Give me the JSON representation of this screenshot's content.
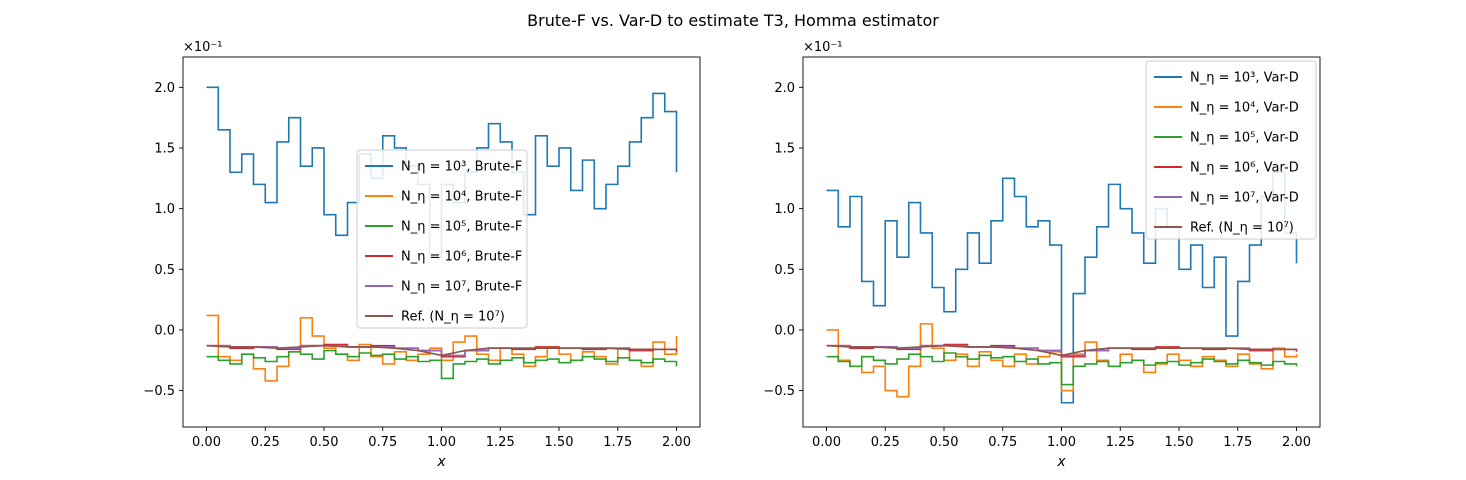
{
  "figure": {
    "title": "Brute-F vs. Var-D to estimate T3, Homma estimator"
  },
  "chart_data": [
    {
      "type": "line",
      "panel": "left",
      "xlabel": "x",
      "ylabel": "",
      "y_multiplier": "×10⁻¹",
      "xlim": [
        -0.1,
        2.1
      ],
      "ylim": [
        -0.8,
        2.25
      ],
      "xticks": [
        0.0,
        0.25,
        0.5,
        0.75,
        1.0,
        1.25,
        1.5,
        1.75,
        2.0
      ],
      "xtick_labels": [
        "0.00",
        "0.25",
        "0.50",
        "0.75",
        "1.00",
        "1.25",
        "1.50",
        "1.75",
        "2.00"
      ],
      "yticks": [
        -0.5,
        0.0,
        0.5,
        1.0,
        1.5,
        2.0
      ],
      "ytick_labels": [
        "−0.5",
        "0.0",
        "0.5",
        "1.0",
        "1.5",
        "2.0"
      ],
      "legend_position": "center",
      "series": [
        {
          "name": "N_η = 10³, Brute-F",
          "color": "#1f77b4",
          "step": true,
          "x": [
            0.0,
            0.05,
            0.1,
            0.15,
            0.2,
            0.25,
            0.3,
            0.35,
            0.4,
            0.45,
            0.5,
            0.55,
            0.6,
            0.65,
            0.7,
            0.75,
            0.8,
            0.85,
            0.9,
            0.95,
            1.0,
            1.05,
            1.1,
            1.15,
            1.2,
            1.25,
            1.3,
            1.35,
            1.4,
            1.45,
            1.5,
            1.55,
            1.6,
            1.65,
            1.7,
            1.75,
            1.8,
            1.85,
            1.9,
            1.95,
            2.0
          ],
          "y": [
            2.0,
            1.65,
            1.3,
            1.45,
            1.2,
            1.05,
            1.55,
            1.75,
            1.35,
            1.5,
            0.95,
            0.78,
            1.05,
            1.45,
            1.25,
            1.6,
            1.5,
            1.35,
            1.2,
            0.6,
            1.2,
            1.05,
            1.3,
            1.5,
            1.7,
            1.55,
            1.3,
            0.95,
            1.6,
            1.35,
            1.5,
            1.15,
            1.4,
            1.0,
            1.2,
            1.35,
            1.55,
            1.75,
            1.95,
            1.8,
            1.3
          ]
        },
        {
          "name": "N_η = 10⁴, Brute-F",
          "color": "#ff7f0e",
          "step": true,
          "x": [
            0.0,
            0.05,
            0.1,
            0.15,
            0.2,
            0.25,
            0.3,
            0.35,
            0.4,
            0.45,
            0.5,
            0.55,
            0.6,
            0.65,
            0.7,
            0.75,
            0.8,
            0.85,
            0.9,
            0.95,
            1.0,
            1.05,
            1.1,
            1.15,
            1.2,
            1.25,
            1.3,
            1.35,
            1.4,
            1.45,
            1.5,
            1.55,
            1.6,
            1.65,
            1.7,
            1.75,
            1.8,
            1.85,
            1.9,
            1.95,
            2.0
          ],
          "y": [
            0.12,
            -0.22,
            -0.25,
            -0.2,
            -0.32,
            -0.42,
            -0.3,
            -0.18,
            0.1,
            -0.05,
            -0.15,
            -0.2,
            -0.25,
            -0.12,
            -0.22,
            -0.28,
            -0.18,
            -0.25,
            -0.2,
            -0.15,
            -0.25,
            -0.1,
            -0.05,
            -0.2,
            -0.25,
            -0.15,
            -0.2,
            -0.3,
            -0.22,
            -0.15,
            -0.2,
            -0.25,
            -0.18,
            -0.22,
            -0.28,
            -0.15,
            -0.25,
            -0.3,
            -0.1,
            -0.2,
            -0.05
          ]
        },
        {
          "name": "N_η = 10⁵, Brute-F",
          "color": "#2ca02c",
          "step": true,
          "x": [
            0.0,
            0.05,
            0.1,
            0.15,
            0.2,
            0.25,
            0.3,
            0.35,
            0.4,
            0.45,
            0.5,
            0.55,
            0.6,
            0.65,
            0.7,
            0.75,
            0.8,
            0.85,
            0.9,
            0.95,
            1.0,
            1.05,
            1.1,
            1.15,
            1.2,
            1.25,
            1.3,
            1.35,
            1.4,
            1.45,
            1.5,
            1.55,
            1.6,
            1.65,
            1.7,
            1.75,
            1.8,
            1.85,
            1.9,
            1.95,
            2.0
          ],
          "y": [
            -0.22,
            -0.25,
            -0.28,
            -0.2,
            -0.23,
            -0.26,
            -0.22,
            -0.18,
            -0.2,
            -0.24,
            -0.17,
            -0.2,
            -0.22,
            -0.19,
            -0.21,
            -0.2,
            -0.24,
            -0.22,
            -0.26,
            -0.25,
            -0.4,
            -0.28,
            -0.26,
            -0.24,
            -0.28,
            -0.25,
            -0.23,
            -0.27,
            -0.25,
            -0.24,
            -0.27,
            -0.25,
            -0.22,
            -0.24,
            -0.26,
            -0.23,
            -0.25,
            -0.27,
            -0.24,
            -0.26,
            -0.3
          ]
        },
        {
          "name": "N_η = 10⁶, Brute-F",
          "color": "#d62728",
          "step": true,
          "x": [
            0.0,
            0.1,
            0.2,
            0.3,
            0.4,
            0.5,
            0.6,
            0.7,
            0.8,
            0.9,
            1.0,
            1.1,
            1.2,
            1.3,
            1.4,
            1.5,
            1.6,
            1.7,
            1.8,
            1.9,
            2.0
          ],
          "y": [
            -0.13,
            -0.15,
            -0.14,
            -0.16,
            -0.13,
            -0.12,
            -0.14,
            -0.13,
            -0.15,
            -0.17,
            -0.22,
            -0.17,
            -0.15,
            -0.16,
            -0.14,
            -0.15,
            -0.16,
            -0.15,
            -0.17,
            -0.16,
            -0.18
          ]
        },
        {
          "name": "N_η = 10⁷, Brute-F",
          "color": "#9467bd",
          "step": true,
          "x": [
            0.0,
            0.1,
            0.2,
            0.3,
            0.4,
            0.5,
            0.6,
            0.7,
            0.8,
            0.9,
            1.0,
            1.1,
            1.2,
            1.3,
            1.4,
            1.5,
            1.6,
            1.7,
            1.8,
            1.9,
            2.0
          ],
          "y": [
            -0.13,
            -0.14,
            -0.14,
            -0.15,
            -0.13,
            -0.13,
            -0.14,
            -0.14,
            -0.15,
            -0.17,
            -0.21,
            -0.17,
            -0.15,
            -0.15,
            -0.15,
            -0.15,
            -0.15,
            -0.15,
            -0.16,
            -0.16,
            -0.16
          ]
        },
        {
          "name": "Ref. (N_η = 10⁷)",
          "color": "#8c564b",
          "step": false,
          "x": [
            0.0,
            0.1,
            0.2,
            0.3,
            0.4,
            0.5,
            0.6,
            0.7,
            0.8,
            0.9,
            1.0,
            1.1,
            1.2,
            1.3,
            1.4,
            1.5,
            1.6,
            1.7,
            1.8,
            1.9,
            2.0
          ],
          "y": [
            -0.13,
            -0.14,
            -0.14,
            -0.15,
            -0.14,
            -0.13,
            -0.14,
            -0.14,
            -0.15,
            -0.17,
            -0.21,
            -0.17,
            -0.15,
            -0.15,
            -0.15,
            -0.15,
            -0.15,
            -0.15,
            -0.16,
            -0.16,
            -0.16
          ]
        }
      ]
    },
    {
      "type": "line",
      "panel": "right",
      "xlabel": "x",
      "ylabel": "",
      "y_multiplier": "×10⁻¹",
      "xlim": [
        -0.1,
        2.1
      ],
      "ylim": [
        -0.8,
        2.25
      ],
      "xticks": [
        0.0,
        0.25,
        0.5,
        0.75,
        1.0,
        1.25,
        1.5,
        1.75,
        2.0
      ],
      "xtick_labels": [
        "0.00",
        "0.25",
        "0.50",
        "0.75",
        "1.00",
        "1.25",
        "1.50",
        "1.75",
        "2.00"
      ],
      "yticks": [
        -0.5,
        0.0,
        0.5,
        1.0,
        1.5,
        2.0
      ],
      "ytick_labels": [
        "−0.5",
        "0.0",
        "0.5",
        "1.0",
        "1.5",
        "2.0"
      ],
      "legend_position": "upper right",
      "series": [
        {
          "name": "N_η = 10³, Var-D",
          "color": "#1f77b4",
          "step": true,
          "x": [
            0.0,
            0.05,
            0.1,
            0.15,
            0.2,
            0.25,
            0.3,
            0.35,
            0.4,
            0.45,
            0.5,
            0.55,
            0.6,
            0.65,
            0.7,
            0.75,
            0.8,
            0.85,
            0.9,
            0.95,
            1.0,
            1.05,
            1.1,
            1.15,
            1.2,
            1.25,
            1.3,
            1.35,
            1.4,
            1.45,
            1.5,
            1.55,
            1.6,
            1.65,
            1.7,
            1.75,
            1.8,
            1.85,
            1.9,
            1.95,
            2.0
          ],
          "y": [
            1.15,
            0.85,
            1.1,
            0.4,
            0.2,
            0.9,
            0.6,
            1.05,
            0.8,
            0.35,
            0.15,
            0.5,
            0.8,
            0.55,
            0.9,
            1.25,
            1.1,
            0.85,
            0.9,
            0.7,
            -0.6,
            0.3,
            0.6,
            0.85,
            1.2,
            1.0,
            0.8,
            0.55,
            1.0,
            0.85,
            0.5,
            0.7,
            0.35,
            0.6,
            -0.05,
            0.4,
            0.7,
            1.1,
            1.3,
            0.8,
            0.55
          ]
        },
        {
          "name": "N_η = 10⁴, Var-D",
          "color": "#ff7f0e",
          "step": true,
          "x": [
            0.0,
            0.05,
            0.1,
            0.15,
            0.2,
            0.25,
            0.3,
            0.35,
            0.4,
            0.45,
            0.5,
            0.55,
            0.6,
            0.65,
            0.7,
            0.75,
            0.8,
            0.85,
            0.9,
            0.95,
            1.0,
            1.05,
            1.1,
            1.15,
            1.2,
            1.25,
            1.3,
            1.35,
            1.4,
            1.45,
            1.5,
            1.55,
            1.6,
            1.65,
            1.7,
            1.75,
            1.8,
            1.85,
            1.9,
            1.95,
            2.0
          ],
          "y": [
            0.0,
            -0.25,
            -0.3,
            -0.35,
            -0.3,
            -0.5,
            -0.55,
            -0.3,
            0.05,
            -0.15,
            -0.25,
            -0.2,
            -0.3,
            -0.18,
            -0.25,
            -0.3,
            -0.2,
            -0.28,
            -0.22,
            -0.18,
            -0.5,
            -0.2,
            -0.1,
            -0.25,
            -0.3,
            -0.2,
            -0.25,
            -0.35,
            -0.28,
            -0.2,
            -0.25,
            -0.3,
            -0.22,
            -0.25,
            -0.3,
            -0.2,
            -0.28,
            -0.32,
            -0.15,
            -0.22,
            -0.2
          ]
        },
        {
          "name": "N_η = 10⁵, Var-D",
          "color": "#2ca02c",
          "step": true,
          "x": [
            0.0,
            0.05,
            0.1,
            0.15,
            0.2,
            0.25,
            0.3,
            0.35,
            0.4,
            0.45,
            0.5,
            0.55,
            0.6,
            0.65,
            0.7,
            0.75,
            0.8,
            0.85,
            0.9,
            0.95,
            1.0,
            1.05,
            1.1,
            1.15,
            1.2,
            1.25,
            1.3,
            1.35,
            1.4,
            1.45,
            1.5,
            1.55,
            1.6,
            1.65,
            1.7,
            1.75,
            1.8,
            1.85,
            1.9,
            1.95,
            2.0
          ],
          "y": [
            -0.22,
            -0.26,
            -0.3,
            -0.22,
            -0.25,
            -0.28,
            -0.24,
            -0.2,
            -0.22,
            -0.26,
            -0.19,
            -0.22,
            -0.24,
            -0.21,
            -0.23,
            -0.22,
            -0.26,
            -0.24,
            -0.28,
            -0.27,
            -0.45,
            -0.3,
            -0.28,
            -0.26,
            -0.3,
            -0.27,
            -0.25,
            -0.29,
            -0.27,
            -0.26,
            -0.29,
            -0.27,
            -0.24,
            -0.26,
            -0.28,
            -0.25,
            -0.27,
            -0.29,
            -0.26,
            -0.28,
            -0.3
          ]
        },
        {
          "name": "N_η = 10⁶, Var-D",
          "color": "#d62728",
          "step": true,
          "x": [
            0.0,
            0.1,
            0.2,
            0.3,
            0.4,
            0.5,
            0.6,
            0.7,
            0.8,
            0.9,
            1.0,
            1.1,
            1.2,
            1.3,
            1.4,
            1.5,
            1.6,
            1.7,
            1.8,
            1.9,
            2.0
          ],
          "y": [
            -0.13,
            -0.15,
            -0.14,
            -0.16,
            -0.13,
            -0.12,
            -0.14,
            -0.13,
            -0.15,
            -0.17,
            -0.22,
            -0.17,
            -0.15,
            -0.16,
            -0.14,
            -0.15,
            -0.16,
            -0.15,
            -0.17,
            -0.16,
            -0.18
          ]
        },
        {
          "name": "N_η = 10⁷, Var-D",
          "color": "#9467bd",
          "step": true,
          "x": [
            0.0,
            0.1,
            0.2,
            0.3,
            0.4,
            0.5,
            0.6,
            0.7,
            0.8,
            0.9,
            1.0,
            1.1,
            1.2,
            1.3,
            1.4,
            1.5,
            1.6,
            1.7,
            1.8,
            1.9,
            2.0
          ],
          "y": [
            -0.13,
            -0.14,
            -0.14,
            -0.15,
            -0.13,
            -0.13,
            -0.14,
            -0.14,
            -0.15,
            -0.17,
            -0.21,
            -0.17,
            -0.15,
            -0.15,
            -0.15,
            -0.15,
            -0.15,
            -0.15,
            -0.16,
            -0.16,
            -0.16
          ]
        },
        {
          "name": "Ref. (N_η = 10⁷)",
          "color": "#8c564b",
          "step": false,
          "x": [
            0.0,
            0.1,
            0.2,
            0.3,
            0.4,
            0.5,
            0.6,
            0.7,
            0.8,
            0.9,
            1.0,
            1.1,
            1.2,
            1.3,
            1.4,
            1.5,
            1.6,
            1.7,
            1.8,
            1.9,
            2.0
          ],
          "y": [
            -0.13,
            -0.14,
            -0.14,
            -0.15,
            -0.14,
            -0.13,
            -0.14,
            -0.14,
            -0.15,
            -0.17,
            -0.21,
            -0.17,
            -0.15,
            -0.15,
            -0.15,
            -0.15,
            -0.15,
            -0.15,
            -0.16,
            -0.16,
            -0.16
          ]
        }
      ]
    }
  ]
}
